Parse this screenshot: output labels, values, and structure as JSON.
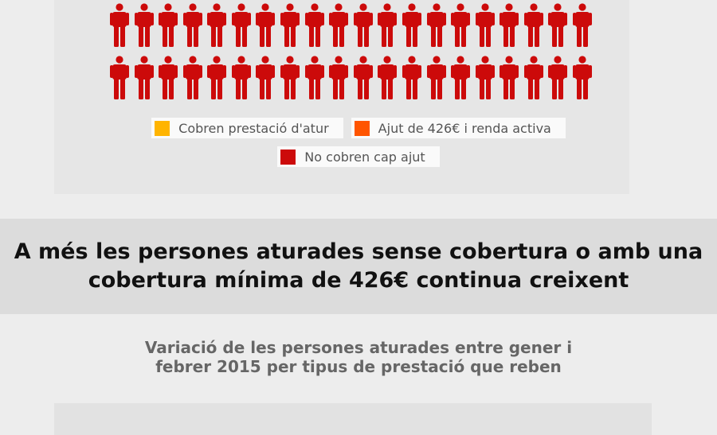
{
  "infographic": {
    "colors": {
      "no_aid": "#cc0a0a",
      "unemployment_benefit": "#ffb400",
      "aid_426": "#ff5500"
    },
    "icon": "person-icon",
    "visible_rows": 2,
    "icons_per_row": 20
  },
  "legend": {
    "items": [
      {
        "label": "Cobren prestació d'atur",
        "color": "#ffb400"
      },
      {
        "label": "Ajut de 426€ i renda activa",
        "color": "#ff5500"
      },
      {
        "label": "No cobren cap ajut",
        "color": "#cc0a0a"
      }
    ]
  },
  "banner": {
    "text": "A més les persones aturades sense cobertura o amb una cobertura mínima de 426€ continua creixent"
  },
  "section": {
    "subtitle_line1": "Variació de les persones aturades entre gener i",
    "subtitle_line2": "febrer 2015 per tipus de prestació que reben"
  }
}
